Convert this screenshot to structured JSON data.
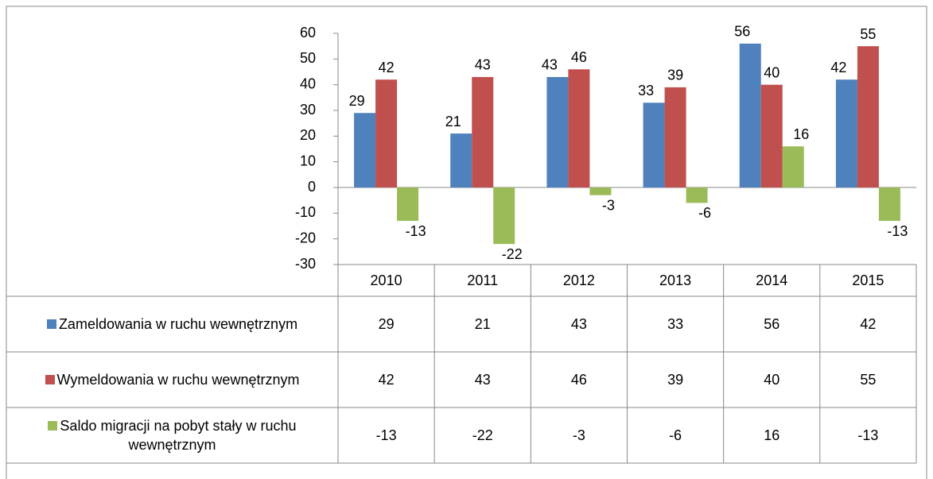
{
  "chart_data": {
    "type": "bar",
    "categories": [
      "2010",
      "2011",
      "2012",
      "2013",
      "2014",
      "2015"
    ],
    "series": [
      {
        "name": "Zameldowania w ruchu wewnętrznym",
        "color": "#4f81bd",
        "values": [
          29,
          21,
          43,
          33,
          56,
          42
        ]
      },
      {
        "name": "Wymeldowania w ruchu wewnętrznym",
        "color": "#c0504d",
        "values": [
          42,
          43,
          46,
          39,
          40,
          55
        ]
      },
      {
        "name": "Saldo migracji na pobyt stały w ruchu wewnętrznym",
        "color": "#9bbb59",
        "values": [
          -13,
          -22,
          -3,
          -6,
          16,
          -13
        ]
      }
    ],
    "ylim": [
      -30,
      60
    ],
    "yticks": [
      -30,
      -20,
      -10,
      0,
      10,
      20,
      30,
      40,
      50,
      60
    ]
  }
}
